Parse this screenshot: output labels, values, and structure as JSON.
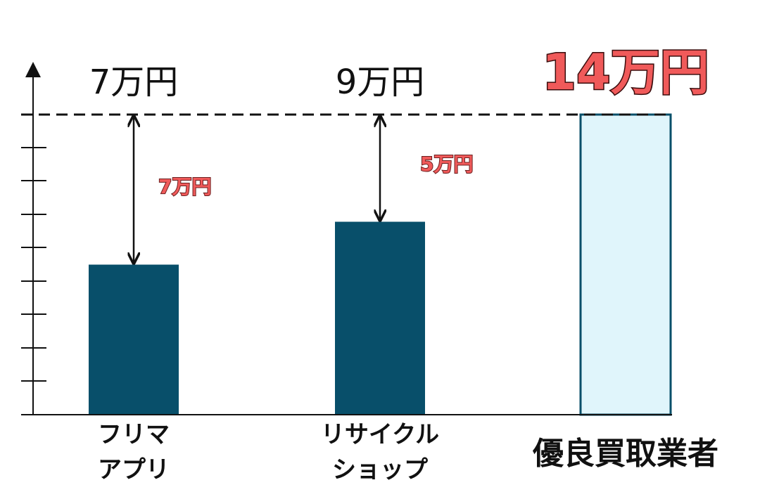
{
  "chart_data": {
    "type": "bar",
    "categories": [
      [
        "フリマ",
        "アプリ"
      ],
      [
        "リサイクル",
        "ショップ"
      ],
      [
        "優良買取業者"
      ]
    ],
    "values": [
      7,
      9,
      14
    ],
    "value_labels": [
      "7万円",
      "9万円",
      "14万円"
    ],
    "value_label_colors": [
      "#111111",
      "#111111",
      "#f05a5a"
    ],
    "colors": [
      "#084f6a",
      "#084f6a",
      "#e0f5fb"
    ],
    "edge_color": "#084f6a",
    "ylim": [
      0,
      14
    ],
    "differences": {
      "values": [
        7,
        5
      ],
      "value_labels": [
        "7万円",
        "5万円"
      ],
      "color": "#f05a5a"
    }
  }
}
